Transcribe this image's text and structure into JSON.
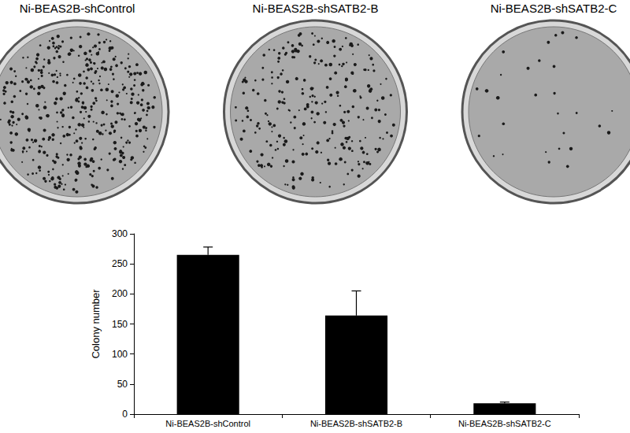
{
  "chart_data": {
    "type": "bar",
    "categories": [
      "Ni-BEAS2B-shControl",
      "Ni-BEAS2B-shSATB2-B",
      "Ni-BEAS2B-shSATB2-C"
    ],
    "values": [
      265,
      164,
      18
    ],
    "errors": [
      13,
      41,
      2
    ],
    "color": "#000000",
    "y_label": "Colony number",
    "ylim": [
      0,
      300
    ],
    "yticks": [
      0,
      50,
      100,
      150,
      200,
      250,
      300
    ],
    "grid": false
  }
}
